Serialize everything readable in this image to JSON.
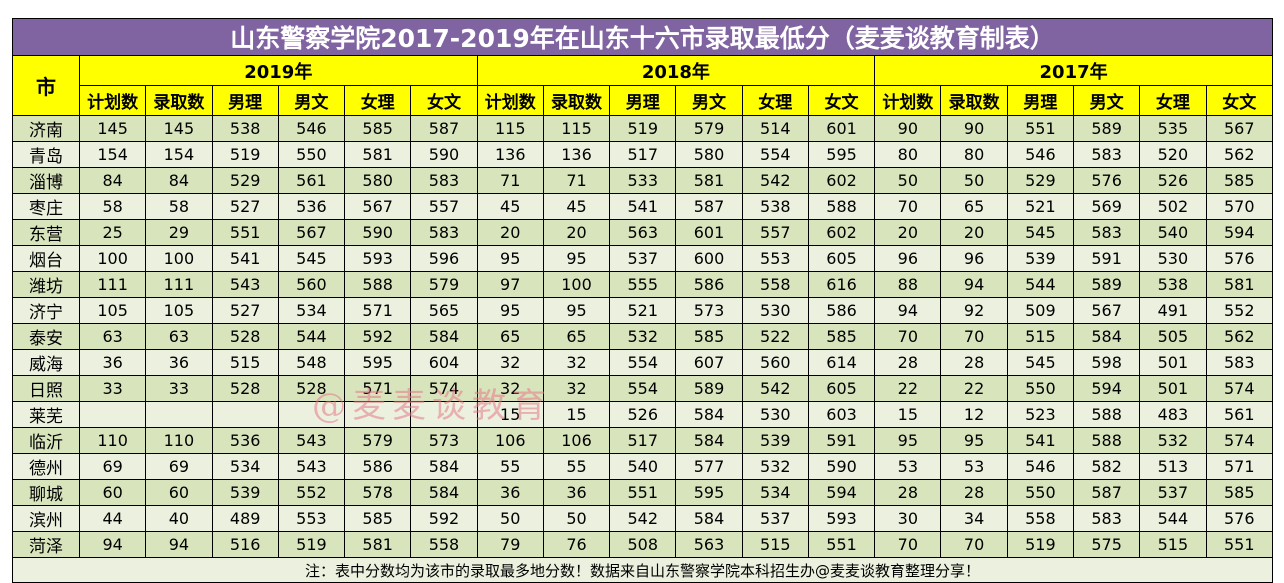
{
  "title": "山东警察学院2017-2019年在山东十六市录取最低分（麦麦谈教育制表）",
  "city_header": "市",
  "years": [
    "2019年",
    "2018年",
    "2017年"
  ],
  "sub_headers": [
    "计划数",
    "录取数",
    "男理",
    "男文",
    "女理",
    "女文"
  ],
  "colors": {
    "title_bg": "#8064a2",
    "header_bg": "#ffff00",
    "row_dark": "#d8e4bc",
    "row_light": "#ebf1de"
  },
  "rows": [
    {
      "city": "济南",
      "y2019": [
        "145",
        "145",
        "538",
        "546",
        "585",
        "587"
      ],
      "y2018": [
        "115",
        "115",
        "519",
        "579",
        "514",
        "601"
      ],
      "y2017": [
        "90",
        "90",
        "551",
        "589",
        "535",
        "567"
      ]
    },
    {
      "city": "青岛",
      "y2019": [
        "154",
        "154",
        "519",
        "550",
        "581",
        "590"
      ],
      "y2018": [
        "136",
        "136",
        "517",
        "580",
        "554",
        "595"
      ],
      "y2017": [
        "80",
        "80",
        "546",
        "583",
        "520",
        "562"
      ]
    },
    {
      "city": "淄博",
      "y2019": [
        "84",
        "84",
        "529",
        "561",
        "580",
        "583"
      ],
      "y2018": [
        "71",
        "71",
        "533",
        "581",
        "542",
        "602"
      ],
      "y2017": [
        "50",
        "50",
        "529",
        "576",
        "526",
        "585"
      ]
    },
    {
      "city": "枣庄",
      "y2019": [
        "58",
        "58",
        "527",
        "536",
        "567",
        "557"
      ],
      "y2018": [
        "45",
        "45",
        "541",
        "587",
        "538",
        "588"
      ],
      "y2017": [
        "70",
        "65",
        "521",
        "569",
        "502",
        "570"
      ]
    },
    {
      "city": "东营",
      "y2019": [
        "25",
        "29",
        "551",
        "567",
        "590",
        "583"
      ],
      "y2018": [
        "20",
        "20",
        "563",
        "601",
        "557",
        "602"
      ],
      "y2017": [
        "20",
        "20",
        "545",
        "583",
        "540",
        "594"
      ]
    },
    {
      "city": "烟台",
      "y2019": [
        "100",
        "100",
        "541",
        "545",
        "593",
        "596"
      ],
      "y2018": [
        "95",
        "95",
        "537",
        "600",
        "553",
        "605"
      ],
      "y2017": [
        "96",
        "96",
        "539",
        "591",
        "530",
        "576"
      ]
    },
    {
      "city": "潍坊",
      "y2019": [
        "111",
        "111",
        "543",
        "560",
        "588",
        "579"
      ],
      "y2018": [
        "97",
        "100",
        "555",
        "586",
        "558",
        "616"
      ],
      "y2017": [
        "88",
        "94",
        "544",
        "589",
        "538",
        "581"
      ]
    },
    {
      "city": "济宁",
      "y2019": [
        "105",
        "105",
        "527",
        "534",
        "571",
        "565"
      ],
      "y2018": [
        "95",
        "95",
        "521",
        "573",
        "530",
        "586"
      ],
      "y2017": [
        "94",
        "92",
        "509",
        "567",
        "491",
        "552"
      ]
    },
    {
      "city": "泰安",
      "y2019": [
        "63",
        "63",
        "528",
        "544",
        "592",
        "584"
      ],
      "y2018": [
        "65",
        "65",
        "532",
        "585",
        "522",
        "585"
      ],
      "y2017": [
        "70",
        "70",
        "515",
        "584",
        "505",
        "562"
      ]
    },
    {
      "city": "威海",
      "y2019": [
        "36",
        "36",
        "515",
        "548",
        "595",
        "604"
      ],
      "y2018": [
        "32",
        "32",
        "554",
        "607",
        "560",
        "614"
      ],
      "y2017": [
        "28",
        "28",
        "545",
        "598",
        "501",
        "583"
      ]
    },
    {
      "city": "日照",
      "y2019": [
        "33",
        "33",
        "528",
        "528",
        "571",
        "574"
      ],
      "y2018": [
        "32",
        "32",
        "554",
        "589",
        "542",
        "605"
      ],
      "y2017": [
        "22",
        "22",
        "550",
        "594",
        "501",
        "574"
      ]
    },
    {
      "city": "莱芜",
      "y2019": [
        "",
        "",
        "",
        "",
        "",
        ""
      ],
      "y2018": [
        "15",
        "15",
        "526",
        "584",
        "530",
        "603"
      ],
      "y2017": [
        "15",
        "12",
        "523",
        "588",
        "483",
        "561"
      ]
    },
    {
      "city": "临沂",
      "y2019": [
        "110",
        "110",
        "536",
        "543",
        "579",
        "573"
      ],
      "y2018": [
        "106",
        "106",
        "517",
        "584",
        "539",
        "591"
      ],
      "y2017": [
        "95",
        "95",
        "541",
        "588",
        "532",
        "574"
      ]
    },
    {
      "city": "德州",
      "y2019": [
        "69",
        "69",
        "534",
        "543",
        "586",
        "584"
      ],
      "y2018": [
        "55",
        "55",
        "540",
        "577",
        "532",
        "590"
      ],
      "y2017": [
        "53",
        "53",
        "546",
        "582",
        "513",
        "571"
      ]
    },
    {
      "city": "聊城",
      "y2019": [
        "60",
        "60",
        "539",
        "552",
        "578",
        "584"
      ],
      "y2018": [
        "36",
        "36",
        "551",
        "595",
        "534",
        "594"
      ],
      "y2017": [
        "28",
        "28",
        "550",
        "587",
        "537",
        "585"
      ]
    },
    {
      "city": "滨州",
      "y2019": [
        "44",
        "40",
        "489",
        "553",
        "585",
        "592"
      ],
      "y2018": [
        "50",
        "50",
        "542",
        "584",
        "537",
        "593"
      ],
      "y2017": [
        "30",
        "34",
        "558",
        "583",
        "544",
        "576"
      ]
    },
    {
      "city": "菏泽",
      "y2019": [
        "94",
        "94",
        "516",
        "519",
        "581",
        "558"
      ],
      "y2018": [
        "79",
        "76",
        "508",
        "563",
        "515",
        "551"
      ],
      "y2017": [
        "70",
        "70",
        "519",
        "575",
        "515",
        "551"
      ]
    }
  ],
  "footer": "注：表中分数均为该市的录取最多地分数！数据来自山东警察学院本科招生办@麦麦谈教育整理分享！",
  "watermark": "@麦麦谈教育"
}
